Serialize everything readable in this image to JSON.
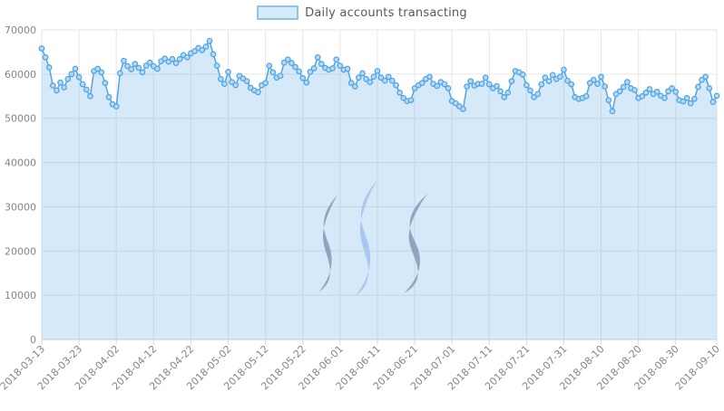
{
  "legend": {
    "label": "Daily accounts transacting"
  },
  "watermark": {
    "name": "steem-logo"
  },
  "chart_data": {
    "type": "line",
    "area": true,
    "title": "",
    "series_name": "Daily accounts transacting",
    "start_date": "2018-03-13",
    "end_date": "2018-09-10",
    "grid": true,
    "legend_position": "top-center",
    "ylim": [
      0,
      70000
    ],
    "y_tick_labels": [
      "0",
      "10000",
      "20000",
      "30000",
      "40000",
      "50000",
      "60000",
      "70000"
    ],
    "x_tick_labels": [
      "2018-03-13",
      "2018-03-23",
      "2018-04-02",
      "2018-04-12",
      "2018-04-22",
      "2018-05-02",
      "2018-05-12",
      "2018-05-22",
      "2018-06-01",
      "2018-06-11",
      "2018-06-21",
      "2018-07-01",
      "2018-07-11",
      "2018-07-21",
      "2018-07-31",
      "2018-08-10",
      "2018-08-20",
      "2018-08-30",
      "2018-09-10"
    ],
    "values": [
      65800,
      63800,
      61500,
      57400,
      56300,
      58100,
      57000,
      58900,
      60000,
      61200,
      59300,
      57700,
      56500,
      55000,
      60700,
      61200,
      60400,
      58000,
      54800,
      53200,
      52700,
      60200,
      63000,
      61800,
      61100,
      62300,
      61400,
      60400,
      61900,
      62600,
      61800,
      61200,
      62900,
      63500,
      62800,
      63400,
      62500,
      63400,
      64300,
      63800,
      64700,
      65200,
      65900,
      65400,
      66200,
      67500,
      64500,
      61900,
      58900,
      57800,
      60500,
      58200,
      57500,
      59600,
      59000,
      58400,
      56900,
      56300,
      55900,
      57500,
      58000,
      61900,
      60400,
      59200,
      59600,
      62600,
      63300,
      62500,
      61600,
      60600,
      59100,
      58100,
      60500,
      61300,
      63800,
      62300,
      61400,
      61000,
      61300,
      63300,
      61900,
      61000,
      61200,
      58000,
      57200,
      59200,
      60200,
      58900,
      58200,
      59400,
      60700,
      59200,
      58500,
      59400,
      58500,
      57500,
      55800,
      54600,
      53900,
      54100,
      56800,
      57500,
      58000,
      58900,
      59400,
      57800,
      57300,
      58200,
      57700,
      56800,
      53900,
      53400,
      52700,
      52100,
      57200,
      58400,
      57400,
      57800,
      57800,
      59200,
      57700,
      56800,
      57300,
      56100,
      54800,
      55800,
      58400,
      60700,
      60400,
      59900,
      57500,
      56300,
      54800,
      55500,
      57700,
      59200,
      58400,
      59800,
      58900,
      59400,
      61000,
      58500,
      57700,
      54800,
      54400,
      54600,
      55000,
      58000,
      58700,
      57800,
      59400,
      57200,
      54100,
      51600,
      55500,
      56100,
      57100,
      58200,
      56800,
      56400,
      54600,
      55000,
      55800,
      56600,
      55500,
      56000,
      55100,
      54600,
      56100,
      56800,
      56000,
      54100,
      53800,
      54600,
      53400,
      54400,
      57100,
      58700,
      59400,
      56800,
      53700,
      55100
    ],
    "colors": {
      "line": "#52a5e2",
      "marker_fill": "#b5d9f4",
      "area_fill": "rgba(90,169,226,0.25)",
      "grid": "#e6e6e6",
      "axis_line": "#c9c9c9",
      "tick_stub": "#d9d9d9",
      "tick_text": "#858585",
      "legend_text": "#595959",
      "legend_box_fill": "#d6eaf8",
      "legend_box_border": "#8fc3ea",
      "watermark_side": "#8d9cba",
      "watermark_middle": "#a4c6ee"
    }
  }
}
